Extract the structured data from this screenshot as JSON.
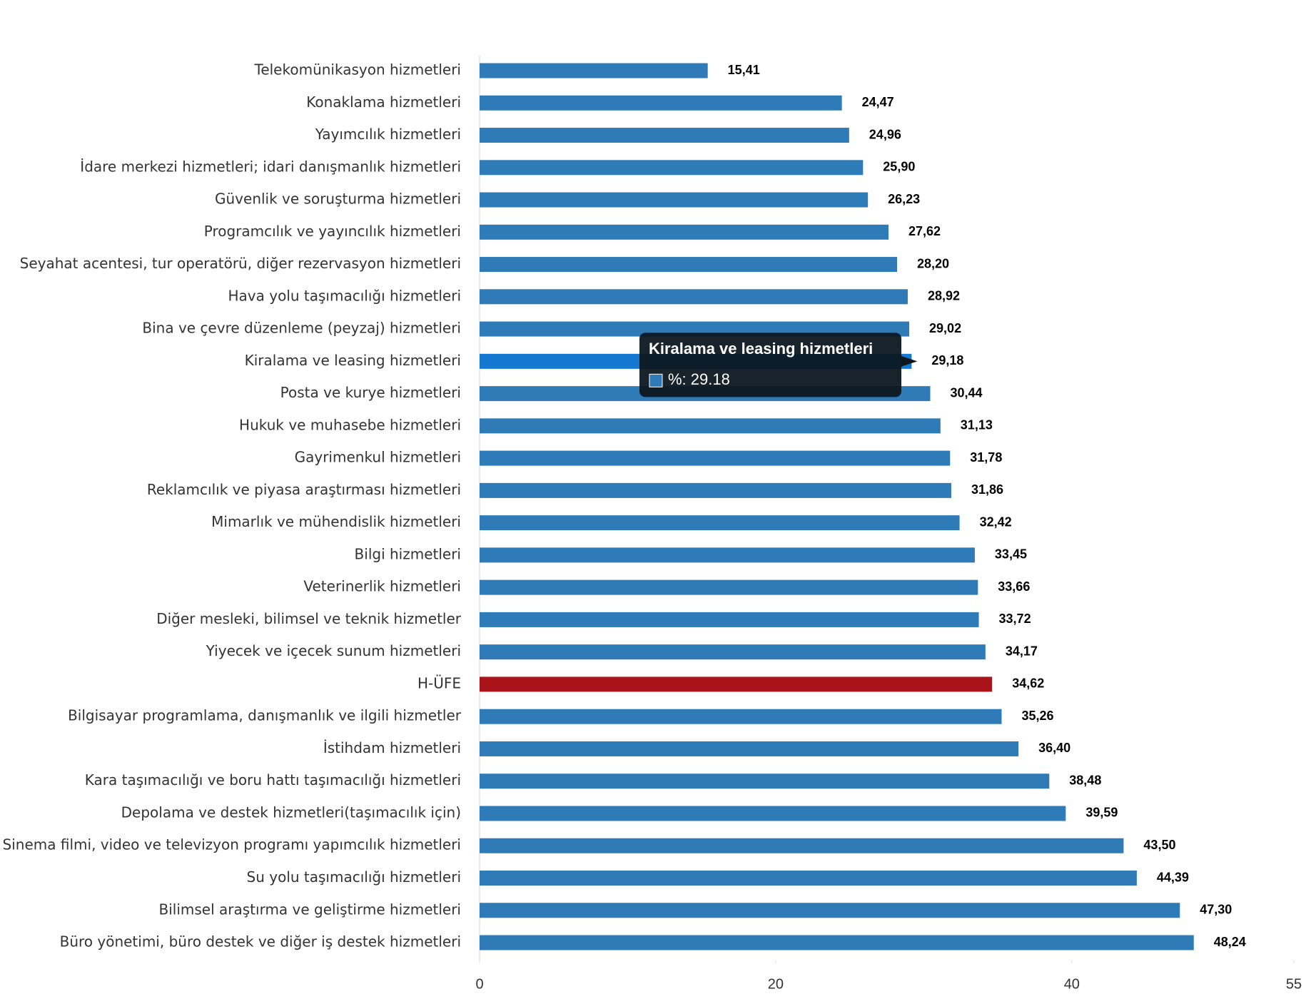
{
  "chart_data": {
    "type": "bar",
    "orientation": "horizontal",
    "categories": [
      "Telekomünikasyon hizmetleri",
      "Konaklama hizmetleri",
      "Yayımcılık hizmetleri",
      "İdare merkezi hizmetleri; idari danışmanlık hizmetleri",
      "Güvenlik ve soruşturma hizmetleri",
      "Programcılık ve yayıncılık hizmetleri",
      "Seyahat acentesi, tur operatörü, diğer rezervasyon hizmetleri",
      "Hava yolu taşımacılığı hizmetleri",
      "Bina ve çevre düzenleme (peyzaj) hizmetleri",
      "Kiralama ve leasing hizmetleri",
      "Posta ve kurye hizmetleri",
      "Hukuk ve muhasebe hizmetleri",
      "Gayrimenkul hizmetleri",
      "Reklamcılık ve piyasa araştırması hizmetleri",
      "Mimarlık ve mühendislik hizmetleri",
      "Bilgi hizmetleri",
      "Veterinerlik hizmetleri",
      "Diğer mesleki, bilimsel ve teknik hizmetler",
      "Yiyecek ve içecek sunum hizmetleri",
      "H-ÜFE",
      "Bilgisayar programlama, danışmanlık ve ilgili hizmetler",
      "İstihdam hizmetleri",
      "Kara taşımacılığı ve boru hattı taşımacılığı hizmetleri",
      "Depolama ve destek hizmetleri(taşımacılık için)",
      "Sinema filmi, video ve televizyon programı yapımcılık hizmetleri",
      "Su yolu taşımacılığı hizmetleri",
      "Bilimsel araştırma ve geliştirme hizmetleri",
      "Büro yönetimi, büro destek ve diğer iş destek hizmetleri"
    ],
    "values": [
      15.41,
      24.47,
      24.96,
      25.9,
      26.23,
      27.62,
      28.2,
      28.92,
      29.02,
      29.18,
      30.44,
      31.13,
      31.78,
      31.86,
      32.42,
      33.45,
      33.66,
      33.72,
      34.17,
      34.62,
      35.26,
      36.4,
      38.48,
      39.59,
      43.5,
      44.39,
      47.3,
      48.24
    ],
    "value_labels": [
      "15,41",
      "24,47",
      "24,96",
      "25,90",
      "26,23",
      "27,62",
      "28,20",
      "28,92",
      "29,02",
      "29,18",
      "30,44",
      "31,13",
      "31,78",
      "31,86",
      "32,42",
      "33,45",
      "33,66",
      "33,72",
      "34,17",
      "34,62",
      "35,26",
      "36,40",
      "38,48",
      "39,59",
      "43,50",
      "44,39",
      "47,30",
      "48,24"
    ],
    "colors": [
      "#2f7bb8",
      "#2f7bb8",
      "#2f7bb8",
      "#2f7bb8",
      "#2f7bb8",
      "#2f7bb8",
      "#2f7bb8",
      "#2f7bb8",
      "#2f7bb8",
      "#1477d0",
      "#2f7bb8",
      "#2f7bb8",
      "#2f7bb8",
      "#2f7bb8",
      "#2f7bb8",
      "#2f7bb8",
      "#2f7bb8",
      "#2f7bb8",
      "#2f7bb8",
      "#a8141a",
      "#2f7bb8",
      "#2f7bb8",
      "#2f7bb8",
      "#2f7bb8",
      "#2f7bb8",
      "#2f7bb8",
      "#2f7bb8",
      "#2f7bb8"
    ],
    "xlim": [
      0,
      55
    ],
    "xticks": [
      0,
      20,
      40,
      55
    ],
    "tooltip": {
      "title": "Kiralama ve leasing hizmetleri",
      "text": "%: 29.18",
      "index": 9
    }
  }
}
